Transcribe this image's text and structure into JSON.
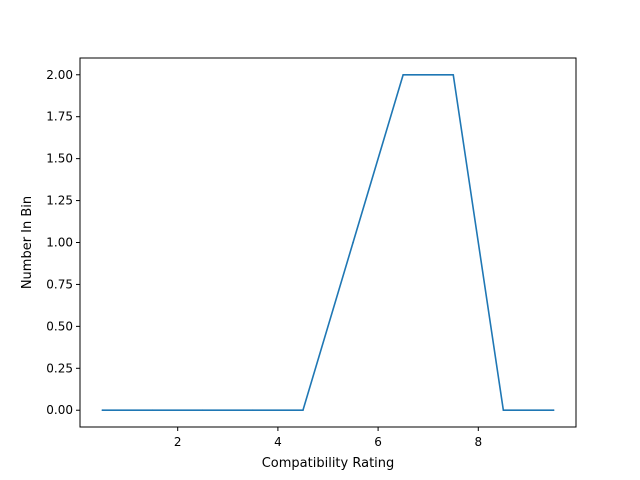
{
  "chart_data": {
    "type": "line",
    "title": "",
    "xlabel": "Compatibility Rating",
    "ylabel": "Number In Bin",
    "xlim": [
      0.05,
      9.95
    ],
    "ylim": [
      -0.1,
      2.1
    ],
    "xticks": [
      2,
      4,
      6,
      8
    ],
    "xtick_labels": [
      "2",
      "4",
      "6",
      "8"
    ],
    "yticks": [
      0,
      0.25,
      0.5,
      0.75,
      1.0,
      1.25,
      1.5,
      1.75,
      2.0
    ],
    "ytick_labels": [
      "0.00",
      "0.25",
      "0.50",
      "0.75",
      "1.00",
      "1.25",
      "1.50",
      "1.75",
      "2.00"
    ],
    "grid": false,
    "series": [
      {
        "color": "#1f77b4",
        "x": [
          0.5,
          1.5,
          2.5,
          3.5,
          4.5,
          5.5,
          6.5,
          7.5,
          8.5,
          9.5
        ],
        "y": [
          0,
          0,
          0,
          0,
          0,
          1,
          2,
          2,
          0,
          0
        ]
      }
    ]
  }
}
